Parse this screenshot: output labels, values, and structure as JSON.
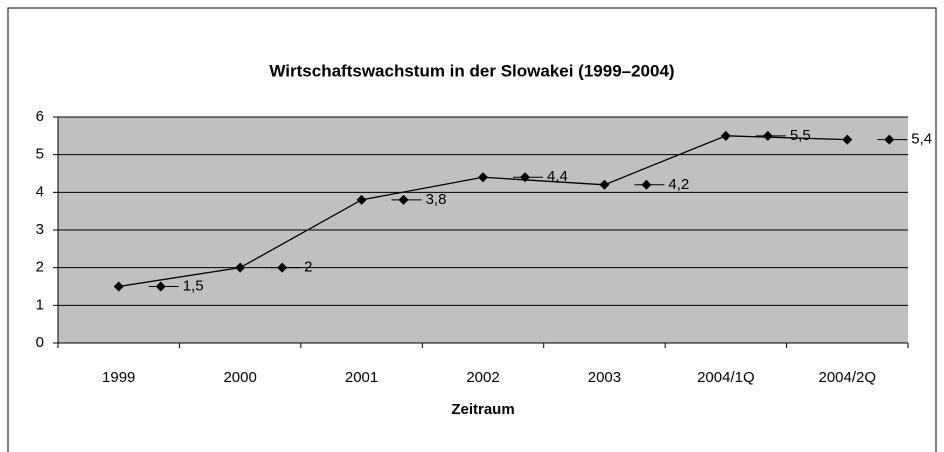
{
  "chart_data": {
    "type": "line",
    "title": "Wirtschaftswachstum in der Slowakei (1999–2004)",
    "x_label": "Zeitraum",
    "categories": [
      "1999",
      "2000",
      "2001",
      "2002",
      "2003",
      "2004/1Q",
      "2004/2Q"
    ],
    "series": [
      {
        "name": "Wirtschaftswachstum",
        "color": "#000000",
        "values": [
          1.5,
          2,
          3.8,
          4.4,
          4.2,
          5.5,
          5.4
        ],
        "value_labels": [
          "1,5",
          "2",
          "3,8",
          "4,4",
          "4,2",
          "5,5",
          "5,4"
        ]
      }
    ],
    "ylim": [
      0,
      6
    ],
    "yticks": [
      0,
      1,
      2,
      3,
      4,
      5,
      6
    ],
    "grid": true
  }
}
